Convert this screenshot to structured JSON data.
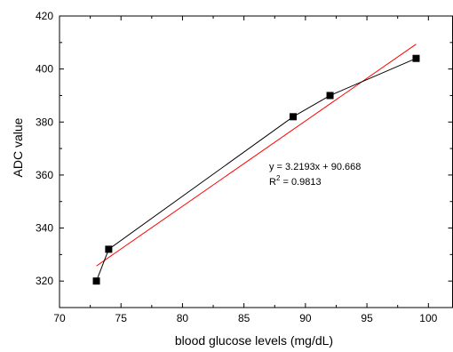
{
  "chart_data": {
    "type": "scatter",
    "title": "",
    "xlabel": "blood glucose levels (mg/dL)",
    "ylabel": "ADC value",
    "xlim": [
      70,
      102
    ],
    "ylim": [
      310,
      420
    ],
    "xticks": [
      70,
      75,
      80,
      85,
      90,
      95,
      100
    ],
    "yticks": [
      320,
      340,
      360,
      380,
      400,
      420
    ],
    "grid": false,
    "legend": "none",
    "series": [
      {
        "points": [
          {
            "x": 73,
            "y": 320
          },
          {
            "x": 74,
            "y": 332
          },
          {
            "x": 89,
            "y": 382
          },
          {
            "x": 92,
            "y": 390
          },
          {
            "x": 99,
            "y": 404
          }
        ],
        "color": "#000000",
        "marker": "square",
        "connected": true
      }
    ],
    "fit": {
      "slope": 3.2193,
      "intercept": 90.668,
      "x_range": [
        73,
        99
      ],
      "color": "#ff0000"
    },
    "annotation": {
      "equation": "y = 3.2193x + 90.668",
      "r2_prefix": "R",
      "r2_sup": "2",
      "r2_suffix": " = 0.9813"
    }
  }
}
